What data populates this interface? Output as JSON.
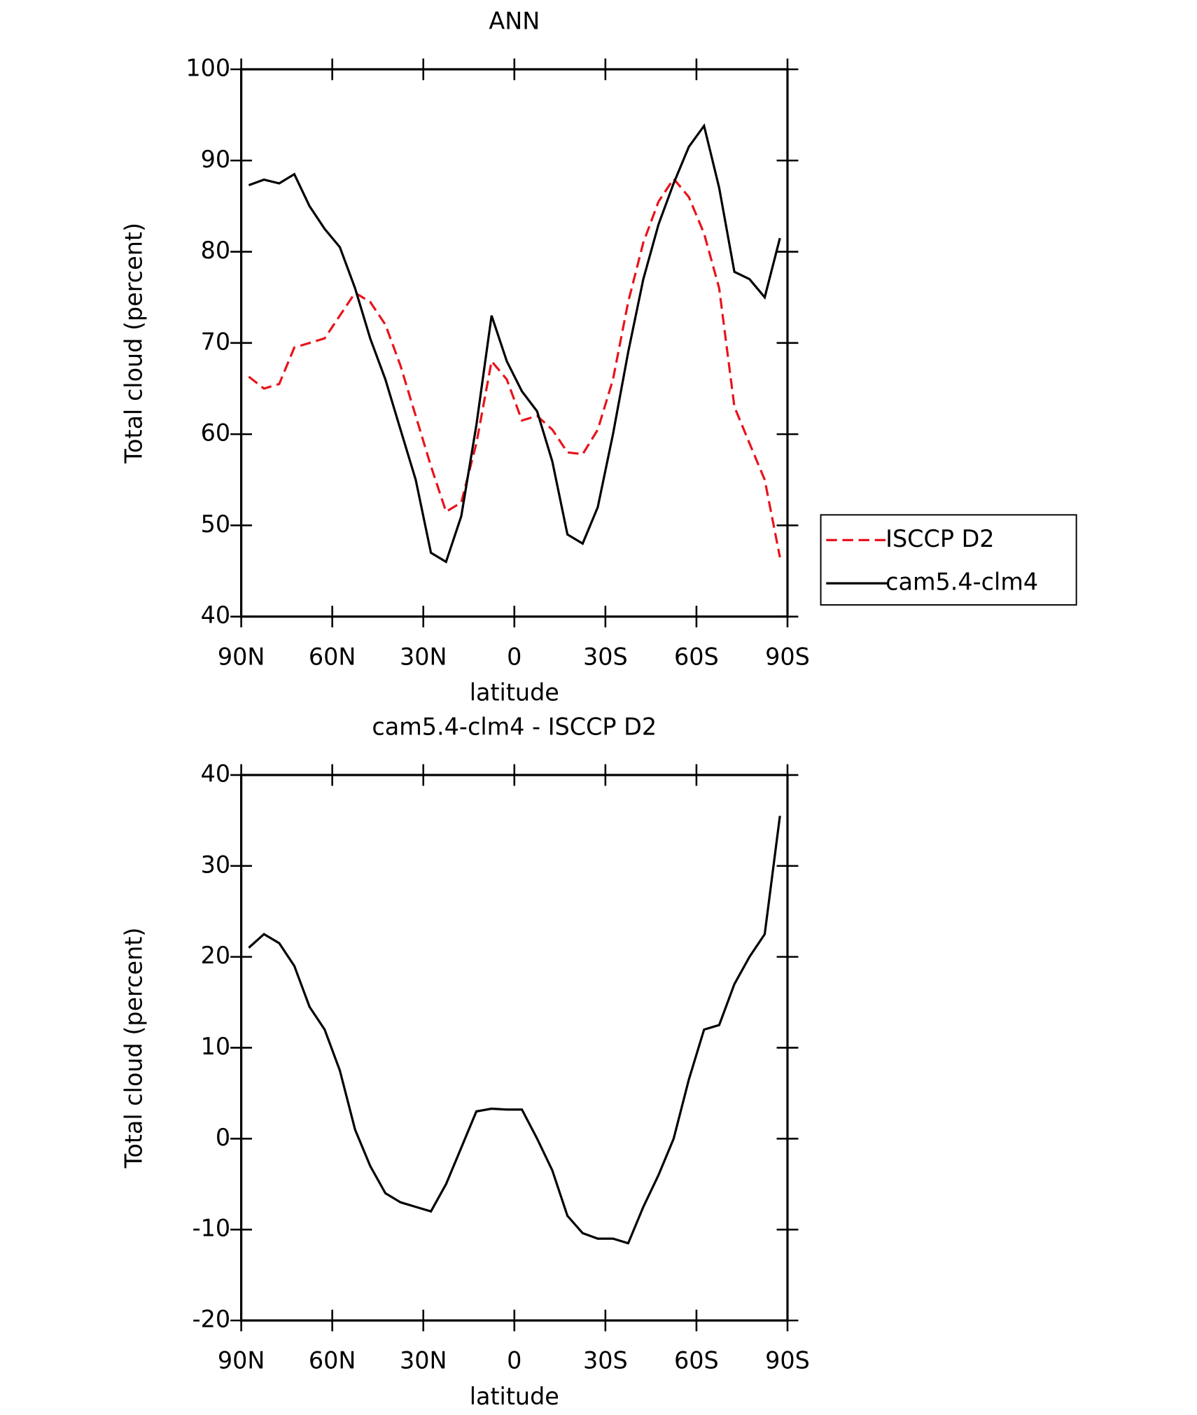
{
  "chart_data": [
    {
      "type": "line",
      "title": "ANN",
      "xlabel": "latitude",
      "ylabel": "Total cloud (percent)",
      "x": [
        87.5,
        82.5,
        77.5,
        72.5,
        67.5,
        62.5,
        57.5,
        52.5,
        47.5,
        42.5,
        37.5,
        32.5,
        27.5,
        22.5,
        17.5,
        12.5,
        7.5,
        2.5,
        -2.5,
        -7.5,
        -12.5,
        -17.5,
        -22.5,
        -27.5,
        -32.5,
        -37.5,
        -42.5,
        -47.5,
        -52.5,
        -57.5,
        -62.5,
        -67.5,
        -72.5,
        -77.5,
        -82.5,
        -87.5
      ],
      "xlim": [
        90,
        -90
      ],
      "xticks": [
        {
          "value": 90,
          "label": "90N"
        },
        {
          "value": 60,
          "label": "60N"
        },
        {
          "value": 30,
          "label": "30N"
        },
        0,
        {
          "value": -30,
          "label": "30S"
        },
        {
          "value": -60,
          "label": "60S"
        },
        {
          "value": -90,
          "label": "90S"
        }
      ],
      "ylim": [
        40,
        100
      ],
      "yticks": [
        40,
        50,
        60,
        70,
        80,
        90,
        100
      ],
      "legend": "right",
      "series": [
        {
          "name": "ISCCP D2",
          "color": "#e8141c",
          "linestyle": "dashed",
          "values": [
            66.3,
            65,
            65.5,
            69.5,
            70,
            70.5,
            73,
            75.5,
            74.5,
            72,
            67.5,
            62,
            56.5,
            51.5,
            52.5,
            59,
            68,
            66,
            61.5,
            62,
            60.5,
            58,
            57.8,
            60.5,
            66,
            74.5,
            81,
            85.5,
            88,
            86,
            82,
            76,
            63,
            59,
            55,
            46.5
          ]
        },
        {
          "name": "cam5.4-clm4",
          "color": "#000000",
          "linestyle": "solid",
          "values": [
            87.3,
            87.9,
            87.5,
            88.5,
            85,
            82.5,
            80.5,
            76,
            70.5,
            66,
            60.5,
            55,
            47,
            46,
            51,
            61,
            73,
            68,
            64.7,
            62.5,
            57,
            49,
            48,
            52,
            60,
            69,
            77,
            83,
            87.5,
            91.5,
            93.8,
            87,
            77.8,
            77,
            75,
            81.5
          ]
        }
      ]
    },
    {
      "type": "line",
      "title": "cam5.4-clm4 - ISCCP D2",
      "xlabel": "latitude",
      "ylabel": "Total cloud (percent)",
      "x": [
        87.5,
        82.5,
        77.5,
        72.5,
        67.5,
        62.5,
        57.5,
        52.5,
        47.5,
        42.5,
        37.5,
        32.5,
        27.5,
        22.5,
        17.5,
        12.5,
        7.5,
        2.5,
        -2.5,
        -7.5,
        -12.5,
        -17.5,
        -22.5,
        -27.5,
        -32.5,
        -37.5,
        -42.5,
        -47.5,
        -52.5,
        -57.5,
        -62.5,
        -67.5,
        -72.5,
        -77.5,
        -82.5,
        -87.5
      ],
      "xlim": [
        90,
        -90
      ],
      "xticks": [
        {
          "value": 90,
          "label": "90N"
        },
        {
          "value": 60,
          "label": "60N"
        },
        {
          "value": 30,
          "label": "30N"
        },
        0,
        {
          "value": -30,
          "label": "30S"
        },
        {
          "value": -60,
          "label": "60S"
        },
        {
          "value": -90,
          "label": "90S"
        }
      ],
      "ylim": [
        -20,
        40
      ],
      "yticks": [
        -20,
        -10,
        0,
        10,
        20,
        30,
        40
      ],
      "series": [
        {
          "color": "#000000",
          "linestyle": "solid",
          "values": [
            21,
            22.5,
            21.5,
            19,
            14.5,
            12,
            7.5,
            1,
            -3,
            -6,
            -7,
            -7.5,
            -8,
            -5,
            -1,
            3,
            3.3,
            3.2,
            3.2,
            0,
            -3.5,
            -8.5,
            -10.4,
            -11,
            -11,
            -11.5,
            -7.5,
            -4,
            0,
            6.5,
            12,
            12.5,
            17,
            20,
            22.5,
            35.5
          ]
        }
      ]
    }
  ]
}
